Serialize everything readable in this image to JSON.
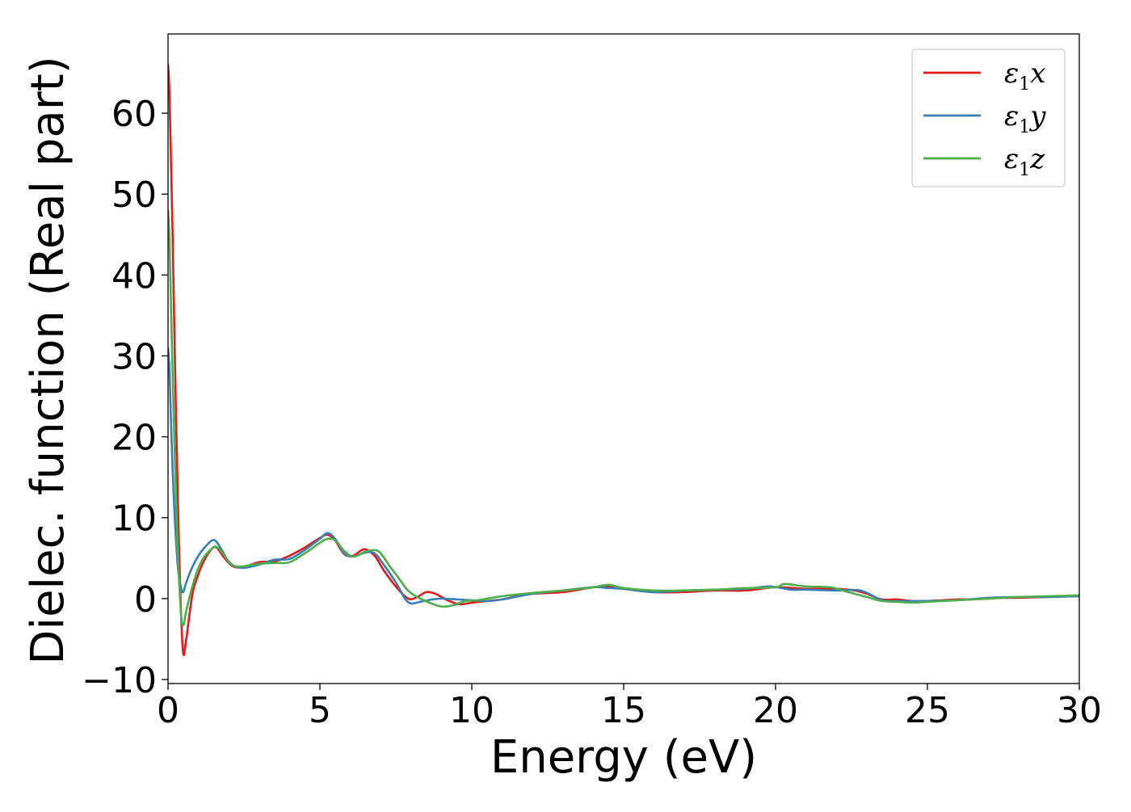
{
  "chart_data": {
    "type": "line",
    "xlabel": "Energy (eV)",
    "ylabel": "Dielec. function (Real part)",
    "xlim": [
      0,
      30
    ],
    "ylim": [
      -10.5,
      69.8
    ],
    "xticks": [
      0,
      5,
      10,
      15,
      20,
      25,
      30
    ],
    "yticks": [
      -10,
      0,
      10,
      20,
      30,
      40,
      50,
      60
    ],
    "xtick_labels": [
      "0",
      "5",
      "10",
      "15",
      "20",
      "25",
      "30"
    ],
    "ytick_labels": [
      "−10",
      "0",
      "10",
      "20",
      "30",
      "40",
      "50",
      "60"
    ],
    "grid": false,
    "legend_position": "top-right",
    "series": [
      {
        "name": "ε₁x",
        "legend": {
          "base": "ε",
          "sub": "1",
          "axis": "x"
        },
        "color": "#e41a1c",
        "x": [
          0,
          0.05,
          0.15,
          0.25,
          0.35,
          0.42,
          0.5,
          0.6,
          0.8,
          1.0,
          1.2,
          1.45,
          1.6,
          1.8,
          2.0,
          2.2,
          2.5,
          3.0,
          3.5,
          4.0,
          4.5,
          5.0,
          5.25,
          5.5,
          5.8,
          6.1,
          6.45,
          6.8,
          7.1,
          7.5,
          7.9,
          8.2,
          8.5,
          8.8,
          9.2,
          9.6,
          10.0,
          10.5,
          11.0,
          11.5,
          12.0,
          13.0,
          14.0,
          14.5,
          15.0,
          16.0,
          17.0,
          18.0,
          19.0,
          20.0,
          21.0,
          22.0,
          22.6,
          23.0,
          23.5,
          24.0,
          24.5,
          25.0,
          25.5,
          26.0,
          26.5,
          27.0,
          27.5,
          28.0,
          29.0,
          30.0
        ],
        "y": [
          66,
          62,
          45,
          25,
          8,
          -1,
          -6.8,
          -5.0,
          0.5,
          3.0,
          4.8,
          6.2,
          6.3,
          5.3,
          4.4,
          3.9,
          3.9,
          4.5,
          4.6,
          5.3,
          6.3,
          7.5,
          7.9,
          7.2,
          5.5,
          5.3,
          6.1,
          5.3,
          3.5,
          1.5,
          0.0,
          0.2,
          0.8,
          0.6,
          -0.2,
          -0.7,
          -0.5,
          -0.3,
          -0.1,
          0.3,
          0.6,
          0.8,
          1.4,
          1.5,
          1.2,
          0.8,
          0.8,
          1.0,
          1.0,
          1.4,
          1.2,
          1.2,
          1.0,
          0.6,
          -0.1,
          -0.1,
          -0.3,
          -0.3,
          -0.2,
          -0.1,
          -0.1,
          0.0,
          0.1,
          0.1,
          0.2,
          0.3
        ]
      },
      {
        "name": "ε₁y",
        "legend": {
          "base": "ε",
          "sub": "1",
          "axis": "y"
        },
        "color": "#377eb8",
        "x": [
          0,
          0.05,
          0.15,
          0.3,
          0.42,
          0.5,
          0.6,
          0.8,
          1.0,
          1.2,
          1.45,
          1.6,
          1.8,
          2.0,
          2.2,
          2.5,
          3.0,
          3.5,
          4.0,
          4.5,
          5.0,
          5.25,
          5.5,
          5.8,
          6.1,
          6.5,
          6.8,
          7.1,
          7.5,
          7.8,
          8.0,
          8.3,
          8.7,
          9.0,
          9.5,
          10.0,
          10.5,
          11.0,
          12.0,
          13.0,
          14.0,
          14.5,
          15.0,
          16.0,
          17.0,
          18.0,
          19.0,
          19.8,
          20.5,
          21.0,
          22.0,
          22.8,
          23.5,
          24.0,
          24.5,
          25.0,
          26.0,
          27.0,
          28.0,
          29.0,
          30.0
        ],
        "y": [
          31,
          28,
          16,
          5,
          1.5,
          0.8,
          2.0,
          3.9,
          5.3,
          6.3,
          7.2,
          7.0,
          5.8,
          4.5,
          4.0,
          3.8,
          4.2,
          4.8,
          4.9,
          6.0,
          7.4,
          8.1,
          7.4,
          5.6,
          5.2,
          5.7,
          5.6,
          4.2,
          2.0,
          0.0,
          -0.6,
          -0.4,
          -0.1,
          0.0,
          -0.1,
          -0.2,
          -0.3,
          -0.1,
          0.6,
          1.0,
          1.4,
          1.3,
          1.2,
          0.8,
          1.0,
          1.1,
          1.2,
          1.5,
          1.1,
          1.1,
          1.0,
          1.0,
          -0.2,
          -0.3,
          -0.3,
          -0.3,
          -0.2,
          0.1,
          0.2,
          0.2,
          0.3
        ]
      },
      {
        "name": "ε₁z",
        "legend": {
          "base": "ε",
          "sub": "1",
          "axis": "z"
        },
        "color": "#4daf4a",
        "x": [
          0,
          0.05,
          0.15,
          0.3,
          0.42,
          0.5,
          0.6,
          0.8,
          1.0,
          1.2,
          1.45,
          1.6,
          1.8,
          2.0,
          2.2,
          2.5,
          3.0,
          3.5,
          4.0,
          4.5,
          5.0,
          5.25,
          5.5,
          5.8,
          6.1,
          6.5,
          6.8,
          7.0,
          7.3,
          7.6,
          7.9,
          8.2,
          8.6,
          8.9,
          9.1,
          9.4,
          9.8,
          10.2,
          11.0,
          12.0,
          13.0,
          14.0,
          14.5,
          15.0,
          16.0,
          17.0,
          18.0,
          19.0,
          20.0,
          20.3,
          21.0,
          21.8,
          22.3,
          23.0,
          23.5,
          24.0,
          24.5,
          25.0,
          26.0,
          27.0,
          28.0,
          29.0,
          30.0
        ],
        "y": [
          48,
          44,
          28,
          8,
          -1.5,
          -3.3,
          -1.5,
          1.5,
          3.8,
          5.2,
          6.2,
          6.4,
          5.6,
          4.6,
          4.0,
          4.0,
          4.3,
          4.4,
          4.5,
          5.6,
          6.9,
          7.4,
          7.2,
          5.9,
          5.2,
          5.8,
          6.0,
          5.6,
          4.0,
          2.5,
          1.0,
          0.2,
          -0.5,
          -0.9,
          -1.0,
          -0.8,
          -0.3,
          -0.2,
          0.3,
          0.7,
          1.0,
          1.4,
          1.7,
          1.3,
          1.0,
          1.0,
          1.1,
          1.3,
          1.4,
          1.8,
          1.5,
          1.4,
          0.9,
          0.2,
          -0.3,
          -0.4,
          -0.5,
          -0.4,
          -0.2,
          0.0,
          0.2,
          0.3,
          0.4
        ]
      }
    ]
  }
}
